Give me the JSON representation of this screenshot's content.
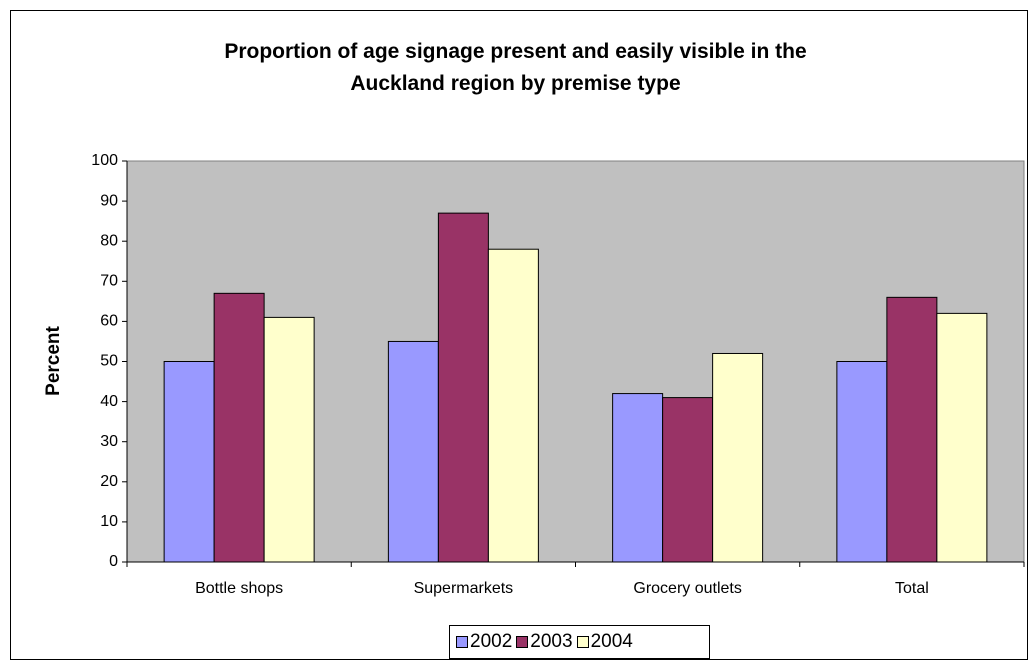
{
  "chart_data": {
    "type": "bar",
    "title_lines": [
      "Proportion of age signage present and easily visible in the",
      "Auckland region by premise type"
    ],
    "ylabel": "Percent",
    "xlabel": "",
    "categories": [
      "Bottle shops",
      "Supermarkets",
      "Grocery outlets",
      "Total"
    ],
    "series": [
      {
        "name": "2002",
        "values": [
          50,
          55,
          42,
          50
        ],
        "color": "#9999ff"
      },
      {
        "name": "2003",
        "values": [
          67,
          87,
          41,
          66
        ],
        "color": "#993366"
      },
      {
        "name": "2004",
        "values": [
          61,
          78,
          52,
          62
        ],
        "color": "#ffffcc"
      }
    ],
    "ylim": [
      0,
      100
    ],
    "yticks": [
      "0",
      "10",
      "20",
      "30",
      "40",
      "50",
      "60",
      "70",
      "80",
      "90",
      "100"
    ],
    "plot_background": "#c0c0c0",
    "grid": false,
    "legend_position": "bottom"
  }
}
